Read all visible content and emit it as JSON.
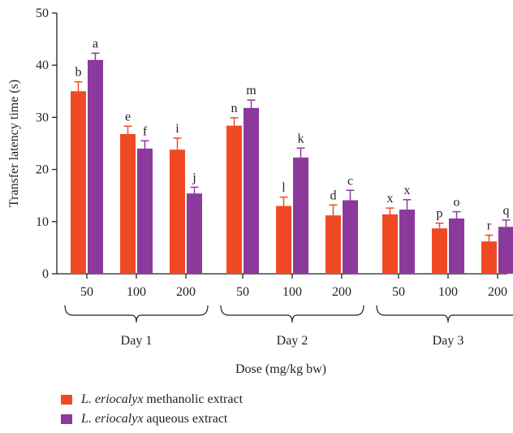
{
  "chart_data": {
    "type": "bar",
    "ylabel": "Transfer latency time (s)",
    "xlabel": "Dose (mg/kg bw)",
    "ylim": [
      0,
      50
    ],
    "yticks": [
      0,
      10,
      20,
      30,
      40,
      50
    ],
    "groups": [
      {
        "label": "Day 1",
        "categories": [
          "50",
          "100",
          "200"
        ]
      },
      {
        "label": "Day 2",
        "categories": [
          "50",
          "100",
          "200"
        ]
      },
      {
        "label": "Day 3",
        "categories": [
          "50",
          "100",
          "200"
        ]
      }
    ],
    "series": [
      {
        "name_italic": "L. eriocalyx",
        "name_rest": " methanolic extract",
        "color": "#F04A24",
        "values": [
          35.0,
          26.8,
          23.8,
          28.4,
          13.0,
          11.2,
          11.4,
          8.7,
          6.2
        ],
        "errors": [
          1.8,
          1.5,
          2.2,
          1.5,
          1.7,
          2.0,
          1.2,
          1.0,
          1.2
        ],
        "letters": [
          "b",
          "e",
          "i",
          "n",
          "l",
          "d",
          "x",
          "p",
          "r"
        ]
      },
      {
        "name_italic": "L. eriocalyx",
        "name_rest": " aqueous extract",
        "color": "#8B3A9C",
        "values": [
          41.0,
          24.0,
          15.4,
          31.8,
          22.3,
          14.1,
          12.3,
          10.6,
          9.0
        ],
        "errors": [
          1.3,
          1.5,
          1.2,
          1.5,
          1.8,
          1.9,
          1.9,
          1.3,
          1.3
        ],
        "letters": [
          "a",
          "f",
          "j",
          "m",
          "k",
          "c",
          "x",
          "o",
          "q"
        ]
      }
    ],
    "grid": false,
    "legend_position": "bottom-left"
  }
}
